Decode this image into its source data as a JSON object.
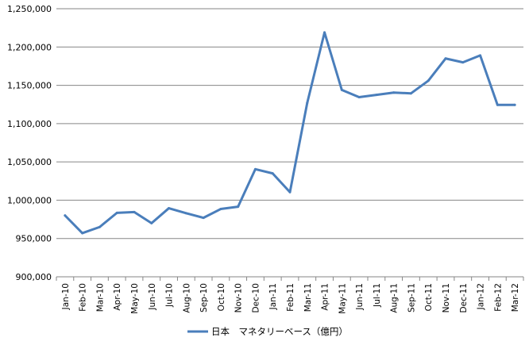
{
  "chart_data": {
    "type": "line",
    "title": "",
    "xlabel": "",
    "ylabel": "",
    "ylim": [
      900000,
      1250000
    ],
    "y_ticks": [
      "900,000",
      "950,000",
      "1,000,000",
      "1,050,000",
      "1,100,000",
      "1,150,000",
      "1,200,000",
      "1,250,000"
    ],
    "grid": "horizontal",
    "legend_position": "bottom",
    "categories": [
      "Jan-10",
      "Feb-10",
      "Mar-10",
      "Apr-10",
      "May-10",
      "Jun-10",
      "Jul-10",
      "Aug-10",
      "Sep-10",
      "Oct-10",
      "Nov-10",
      "Dec-10",
      "Jan-11",
      "Feb-11",
      "Mar-11",
      "Apr-11",
      "May-11",
      "Jun-11",
      "Jul-11",
      "Aug-11",
      "Sep-11",
      "Oct-11",
      "Nov-11",
      "Dec-11",
      "Jan-12",
      "Feb-12",
      "Mar-12"
    ],
    "series": [
      {
        "name": "日本　マネタリーベース（億円）",
        "color": "#4a7ebb",
        "values": [
          980000,
          957000,
          965000,
          983500,
          984500,
          970000,
          989500,
          983000,
          977000,
          988500,
          991500,
          1040500,
          1035000,
          1010500,
          1127000,
          1219000,
          1144000,
          1134500,
          1137500,
          1140500,
          1139500,
          1156000,
          1185000,
          1180000,
          1189000,
          1124500,
          1124500
        ]
      }
    ]
  }
}
